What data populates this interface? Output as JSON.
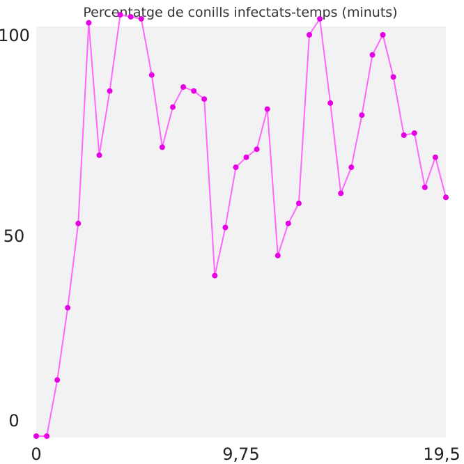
{
  "chart_data": {
    "type": "line",
    "title": "Percentatge de conills infectats-temps (minuts)",
    "xlabel": "",
    "ylabel": "",
    "xlim": [
      0,
      19.5
    ],
    "ylim": [
      0,
      105
    ],
    "x_ticks": [
      "0",
      "9,75",
      "19,5"
    ],
    "y_ticks": [
      "0",
      "50",
      "100"
    ],
    "grid": false,
    "colors": {
      "plot_background": "#f2f2f2",
      "line": "#ff66ff",
      "marker": "#e600e6"
    },
    "series": [
      {
        "x": [
          0,
          0.5,
          1.0,
          1.5,
          2.0,
          2.5,
          3.0,
          3.5,
          4.0,
          4.5,
          5.0,
          5.5,
          6.0,
          6.5,
          7.0,
          7.5,
          8.0,
          8.5,
          9.0,
          9.5,
          10.0,
          10.5,
          11.0,
          11.5,
          12.0,
          12.5,
          13.0,
          13.5,
          14.0,
          14.5,
          15.0,
          15.5,
          16.0,
          16.5,
          17.0,
          17.5,
          18.0,
          18.5,
          19.0,
          19.5
        ],
        "values": [
          0,
          0,
          14,
          32,
          53,
          103,
          70,
          86,
          105,
          104.5,
          104,
          90,
          72,
          82,
          87,
          86,
          84,
          40,
          52,
          67,
          69.5,
          71.5,
          81.5,
          45,
          53,
          58,
          100,
          104,
          83,
          60.5,
          67,
          80,
          95,
          100,
          89.5,
          75,
          75.5,
          62,
          69.5,
          59.5
        ]
      }
    ]
  }
}
